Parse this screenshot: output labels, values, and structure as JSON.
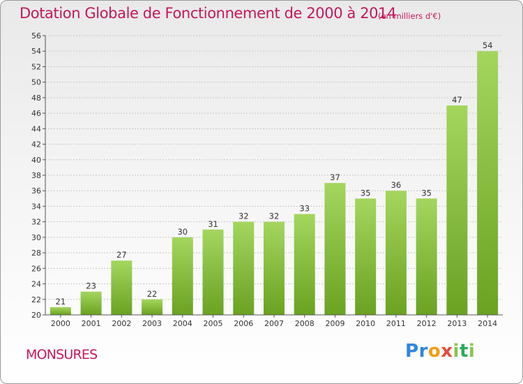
{
  "header": {
    "title": "Dotation Globale de Fonctionnement de 2000 à 2014",
    "unit": "(en milliers d'€)"
  },
  "footer": {
    "commune": "MONSURES",
    "logo": [
      "P",
      "r",
      "o",
      "x",
      "i",
      "t",
      "i"
    ],
    "logo_colors": [
      "#2e86de",
      "#2e86de",
      "#f39c12",
      "#e74c3c",
      "#8bc34a",
      "#27ae60",
      "#8bc34a"
    ]
  },
  "colors": {
    "title": "#c2185b",
    "bar_light": "#a4d65e",
    "bar_dark": "#6aa221",
    "grid": "#c8c8c8"
  },
  "chart_data": {
    "type": "bar",
    "title": "Dotation Globale de Fonctionnement de 2000 à 2014",
    "subtitle": "(en milliers d'€)",
    "categories": [
      "2000",
      "2001",
      "2002",
      "2003",
      "2004",
      "2005",
      "2006",
      "2007",
      "2008",
      "2009",
      "2010",
      "2011",
      "2012",
      "2013",
      "2014"
    ],
    "values": [
      21,
      23,
      27,
      22,
      30,
      31,
      32,
      32,
      33,
      37,
      35,
      36,
      35,
      47,
      54
    ],
    "ylim": [
      20,
      56
    ],
    "yticks": [
      20,
      22,
      24,
      26,
      28,
      30,
      32,
      34,
      36,
      38,
      40,
      42,
      44,
      46,
      48,
      50,
      52,
      54,
      56
    ],
    "grid": true,
    "legend": "none"
  }
}
